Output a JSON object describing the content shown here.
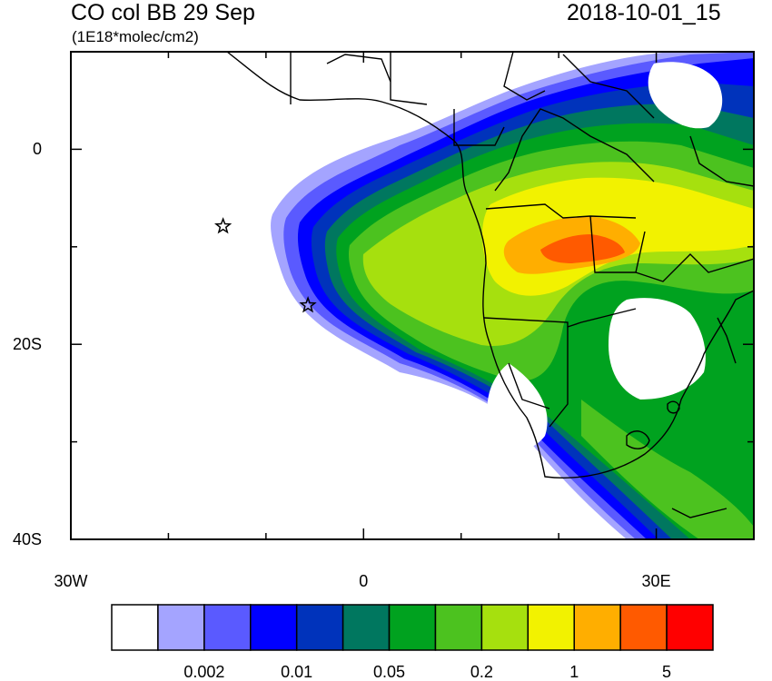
{
  "title_left": "CO col BB 29 Sep",
  "title_right": "2018-10-01_15",
  "units": "(1E18*molec/cm2)",
  "map": {
    "lon_range": [
      -30,
      40
    ],
    "lat_range": [
      -40,
      10
    ],
    "x_ticks": [
      {
        "value": -30,
        "label": "30W"
      },
      {
        "value": 0,
        "label": "0"
      },
      {
        "value": 30,
        "label": "30E"
      }
    ],
    "y_ticks": [
      {
        "value": 0,
        "label": "0"
      },
      {
        "value": -20,
        "label": "20S"
      },
      {
        "value": -40,
        "label": "40S"
      }
    ],
    "markers": [
      {
        "name": "star-marker-1",
        "lon": -14.4,
        "lat": -7.9
      },
      {
        "name": "star-marker-2",
        "lon": -5.7,
        "lat": -16.0
      }
    ]
  },
  "colorbar": {
    "colors": [
      "#ffffff",
      "#a4a4ff",
      "#5a5aff",
      "#0000ff",
      "#0033bb",
      "#00775f",
      "#00a21f",
      "#4cc21f",
      "#a6e00e",
      "#f2f200",
      "#ffae00",
      "#ff5a00",
      "#ff0000"
    ],
    "labels": [
      {
        "boundary": 2,
        "text": "0.002"
      },
      {
        "boundary": 4,
        "text": "0.01"
      },
      {
        "boundary": 6,
        "text": "0.05"
      },
      {
        "boundary": 8,
        "text": "0.2"
      },
      {
        "boundary": 10,
        "text": "1"
      },
      {
        "boundary": 12,
        "text": "5"
      }
    ]
  }
}
